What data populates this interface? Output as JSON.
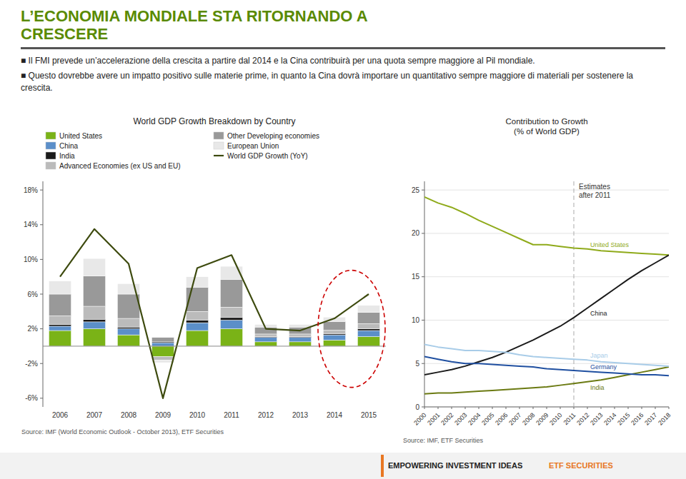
{
  "title": "L’ECONOMIA MONDIALE STA RITORNANDO A\nCRESCERE",
  "color": "#5a8a00",
  "annotations": [
    {
      "text": "■ Il FMI prevede un’accelerazione della crescita a partire dal 2014 e la Cina contribuirà per una quota sempre maggiore al Pil mondiale."
    },
    {
      "text": "■ Questo dovrebbe avere un impatto positivo sulle materie prime, in quanto la Cina dovrà importare un quantitativo sempre maggiore di materiali per sostenere la crescita."
    }
  ],
  "footer": [
    {
      "text": "EMPOWERING INVESTMENT IDEAS"
    },
    {
      "text": "ETF SECURITIES",
      "color": "#e87722"
    }
  ],
  "chart_data": [
    {
      "type": "bar",
      "stacked": true,
      "title": "World GDP Growth Breakdown by Country",
      "categories": [
        "2006",
        "2007",
        "2008",
        "2009",
        "2010",
        "2011",
        "2012",
        "2013",
        "2014",
        "2015"
      ],
      "series": [
        {
          "name": "United States",
          "color": "#7ab317",
          "values": [
            1.8,
            2.0,
            1.3,
            -1.2,
            1.8,
            2.0,
            0.5,
            0.5,
            0.7,
            1.1
          ]
        },
        {
          "name": "China",
          "color": "#5b8fc9",
          "values": [
            0.5,
            0.8,
            0.7,
            0.4,
            0.9,
            1.0,
            0.5,
            0.5,
            0.6,
            0.7
          ]
        },
        {
          "name": "India",
          "color": "#1a1a1a",
          "values": [
            0.2,
            0.3,
            0.2,
            0.1,
            0.3,
            0.3,
            0.1,
            0.1,
            0.15,
            0.2
          ]
        },
        {
          "name": "Advanced Economies (ex US and EU)",
          "color": "#bbbbbb",
          "values": [
            1.0,
            1.5,
            1.0,
            -0.4,
            1.0,
            1.2,
            0.3,
            0.3,
            0.4,
            0.6
          ]
        },
        {
          "name": "Other Developing economies",
          "color": "#999999",
          "values": [
            2.5,
            3.5,
            2.8,
            0.5,
            2.8,
            3.2,
            0.8,
            0.8,
            1.0,
            1.3
          ]
        },
        {
          "name": "European Union",
          "color": "#e8e8e8",
          "values": [
            1.5,
            2.0,
            1.2,
            -0.3,
            1.2,
            1.5,
            0.3,
            0.3,
            0.5,
            0.8
          ]
        },
        {
          "name": "World GDP Growth (YoY)",
          "type": "line",
          "color": "#3d4a0e",
          "values": [
            8.0,
            13.5,
            9.5,
            -6.0,
            9.0,
            10.5,
            2.0,
            1.8,
            3.2,
            6.0
          ]
        }
      ],
      "ylim": [
        -7,
        19
      ],
      "yticks": [
        {
          "value": -6,
          "label": "-6%"
        },
        {
          "value": -2,
          "label": "-2%"
        },
        {
          "value": 2,
          "label": "2%"
        },
        {
          "value": 6,
          "label": "6%"
        },
        {
          "value": 10,
          "label": "10%"
        },
        {
          "value": 14,
          "label": "14%"
        },
        {
          "value": 18,
          "label": "18%"
        }
      ],
      "grid": false,
      "legend": "upper left",
      "annotations": [
        {
          "shape": "ellipse",
          "categories": [
            "2014",
            "2015"
          ],
          "y": 2.0,
          "height": 13.5,
          "color": "#cc0000",
          "line_style": "dashed"
        },
        {
          "text": "Source: IMF (World Economic Outlook - October 2013), ETF Securities"
        }
      ]
    },
    {
      "type": "line",
      "title": "Contribution to Growth\n(% of World GDP)",
      "x": [
        2000,
        2001,
        2002,
        2003,
        2004,
        2005,
        2006,
        2007,
        2008,
        2009,
        2010,
        2011,
        2012,
        2013,
        2014,
        2015,
        2016,
        2017,
        2018
      ],
      "xlim": [
        2000,
        2018
      ],
      "xticks": [
        2000,
        2001,
        2002,
        2003,
        2004,
        2005,
        2006,
        2007,
        2008,
        2009,
        2010,
        2011,
        2012,
        2013,
        2014,
        2015,
        2016,
        2017,
        2018
      ],
      "series": [
        {
          "name": "United States",
          "color": "#8faa1a",
          "values": [
            24.2,
            23.5,
            23.0,
            22.3,
            21.5,
            20.8,
            20.1,
            19.4,
            18.7,
            18.7,
            18.5,
            18.3,
            18.2,
            18.0,
            17.9,
            17.8,
            17.7,
            17.6,
            17.5
          ]
        },
        {
          "name": "China",
          "color": "#1a1a1a",
          "values": [
            3.7,
            4.0,
            4.3,
            4.7,
            5.2,
            5.7,
            6.3,
            7.0,
            7.7,
            8.5,
            9.3,
            10.3,
            11.4,
            12.5,
            13.6,
            14.7,
            15.7,
            16.6,
            17.5
          ]
        },
        {
          "name": "India",
          "color": "#6b7a12",
          "values": [
            1.5,
            1.6,
            1.6,
            1.7,
            1.8,
            1.9,
            2.0,
            2.1,
            2.2,
            2.3,
            2.5,
            2.7,
            2.9,
            3.1,
            3.4,
            3.7,
            4.0,
            4.3,
            4.6
          ]
        },
        {
          "name": "Japan",
          "color": "#a8cce8",
          "values": [
            7.2,
            6.9,
            6.7,
            6.5,
            6.5,
            6.4,
            6.3,
            6.0,
            5.8,
            5.7,
            5.6,
            5.5,
            5.4,
            5.2,
            5.1,
            5.0,
            4.9,
            4.8,
            4.7
          ]
        },
        {
          "name": "Germany",
          "color": "#1f4fa0",
          "values": [
            5.8,
            5.5,
            5.2,
            5.0,
            5.0,
            4.9,
            4.8,
            4.7,
            4.6,
            4.4,
            4.3,
            4.2,
            4.1,
            4.0,
            3.9,
            3.8,
            3.7,
            3.7,
            3.6
          ]
        }
      ],
      "ylim": [
        0,
        26
      ],
      "yticks": [
        0,
        5,
        10,
        15,
        20,
        25
      ],
      "grid": true,
      "annotations": [
        {
          "text": "Estimates\nafter 2011",
          "x": 2011,
          "line_style": "dashed"
        },
        {
          "text": "Source: IMF, ETF Securities"
        }
      ]
    }
  ]
}
